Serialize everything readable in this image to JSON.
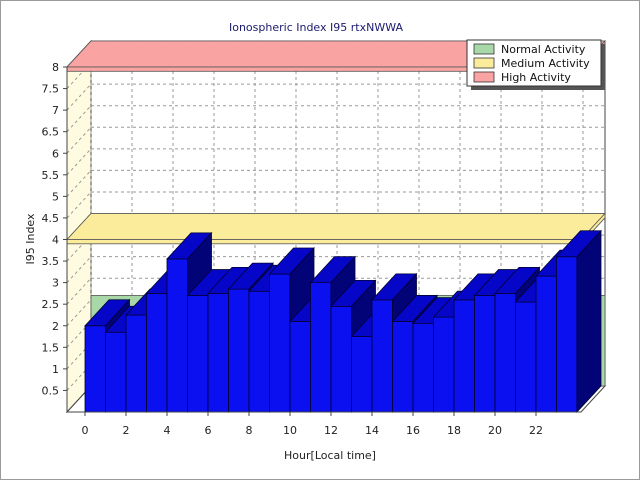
{
  "chart_data": {
    "type": "bar",
    "title": "Ionospheric Index I95 rtxNWWA",
    "xlabel": "Hour[Local time]",
    "ylabel": "I95 Index",
    "x_ticks": [
      "0",
      "2",
      "4",
      "6",
      "8",
      "10",
      "12",
      "14",
      "16",
      "18",
      "20",
      "22"
    ],
    "y_ticks": [
      "0.5",
      "1",
      "1.5",
      "2",
      "2.5",
      "3",
      "3.5",
      "4",
      "4.5",
      "5",
      "5.5",
      "6",
      "6.5",
      "7",
      "7.5",
      "8"
    ],
    "ylim": [
      0,
      8
    ],
    "grid": true,
    "legend_position": "top-right",
    "colors": {
      "bar": "#0a10f0",
      "bar_top": "#0606c8",
      "bar_side": "#030378",
      "normal": "#a8d8a8",
      "medium": "#fbec9c",
      "high": "#f9a3a3",
      "wall": "#fffbe0",
      "title": "#1a1a6e"
    },
    "bands": [
      {
        "name": "Normal Activity",
        "low": 0,
        "high": 2.1,
        "color": "#a8d8a8"
      },
      {
        "name": "Medium Activity",
        "low": 3.9,
        "high": 4.0,
        "color": "#fbec9c"
      },
      {
        "name": "High Activity",
        "low": 7.9,
        "high": 8.0,
        "color": "#f9a3a3"
      }
    ],
    "series": [
      {
        "x": [
          0,
          1,
          2,
          3,
          4,
          5,
          6,
          7,
          8,
          9,
          10,
          11,
          12,
          13,
          14,
          15,
          16,
          17,
          18,
          19,
          20,
          21,
          22,
          23
        ],
        "values": [
          2.0,
          1.85,
          2.25,
          2.75,
          3.55,
          2.7,
          2.75,
          2.85,
          2.8,
          3.2,
          2.1,
          3.0,
          2.45,
          1.75,
          2.6,
          2.1,
          2.05,
          2.2,
          2.6,
          2.7,
          2.75,
          2.55,
          3.15,
          3.6
        ]
      }
    ]
  }
}
